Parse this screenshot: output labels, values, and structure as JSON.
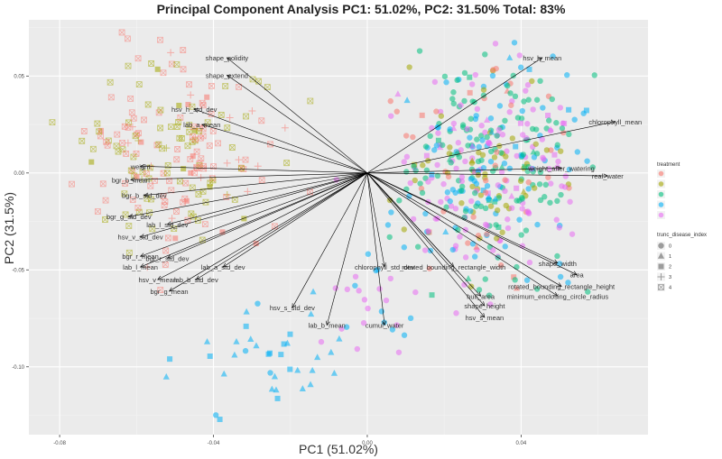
{
  "chart_data": {
    "type": "scatter",
    "title": "Principal Component Analysis PC1: 51.02%, PC2: 31.50% Total: 83%",
    "xlabel": "PC1 (51.02%)",
    "ylabel": "PC2 (31.5%)",
    "xlim": [
      -0.088,
      0.073
    ],
    "ylim": [
      -0.135,
      0.079
    ],
    "xticks": [
      -0.08,
      -0.04,
      0.0,
      0.04
    ],
    "xtick_labels": [
      "-0.08",
      "-0.04",
      "0.00",
      "0.04"
    ],
    "yticks": [
      0.05,
      0.0,
      -0.05,
      -0.1
    ],
    "ytick_labels": [
      "0.05",
      "0.00",
      "-0.05",
      "-0.10"
    ],
    "grid": true,
    "legend_placement": "right",
    "legend_color_title": "treatment",
    "legend_color_entries": [
      {
        "label": "",
        "color": "#F8766D"
      },
      {
        "label": "",
        "color": "#A3A500"
      },
      {
        "label": "",
        "color": "#00BF7D"
      },
      {
        "label": "",
        "color": "#00B0F6"
      },
      {
        "label": "",
        "color": "#E76BF3"
      }
    ],
    "legend_shape_title": "trunc_disease_index",
    "legend_shape_entries": [
      {
        "label": "0",
        "shape": "circle"
      },
      {
        "label": "1",
        "shape": "triangle"
      },
      {
        "label": "2",
        "shape": "square"
      },
      {
        "label": "3",
        "shape": "plus"
      },
      {
        "label": "4",
        "shape": "boxcross"
      }
    ],
    "loadings": [
      {
        "label": "shape_solidity",
        "x": -0.0365,
        "y": 0.0595
      },
      {
        "label": "shape_extend",
        "x": -0.0365,
        "y": 0.0505
      },
      {
        "label": "hsv_h_std_dev",
        "x": -0.045,
        "y": 0.033
      },
      {
        "label": "lab_a_mean",
        "x": -0.043,
        "y": 0.025
      },
      {
        "label": "weight",
        "x": -0.059,
        "y": 0.0035
      },
      {
        "label": "bgr_b_mean",
        "x": -0.0615,
        "y": -0.0035
      },
      {
        "label": "bgr_b_std_dev",
        "x": -0.058,
        "y": -0.0115
      },
      {
        "label": "bgr_g_std_dev",
        "x": -0.062,
        "y": -0.0225
      },
      {
        "label": "lab_l_std_dev",
        "x": -0.052,
        "y": -0.0265
      },
      {
        "label": "hsv_v_std_dev",
        "x": -0.059,
        "y": -0.033
      },
      {
        "label": "bgr_r_mean",
        "x": -0.059,
        "y": -0.043
      },
      {
        "label": "bgr_r_std_dev",
        "x": -0.052,
        "y": -0.044
      },
      {
        "label": "lab_l_mean",
        "x": -0.059,
        "y": -0.0485
      },
      {
        "label": "lab_a_std_dev",
        "x": -0.0375,
        "y": -0.0485
      },
      {
        "label": "hsv_v_mean",
        "x": -0.0545,
        "y": -0.055
      },
      {
        "label": "lab_b_std_dev",
        "x": -0.0445,
        "y": -0.055
      },
      {
        "label": "bgr_g_mean",
        "x": -0.0515,
        "y": -0.061
      },
      {
        "label": "hsv_s_std_dev",
        "x": -0.0195,
        "y": -0.0695
      },
      {
        "label": "lab_b_mean",
        "x": -0.0105,
        "y": -0.0785
      },
      {
        "label": "cumul_water",
        "x": 0.0045,
        "y": -0.0785
      },
      {
        "label": "chlorophyll_std_dev",
        "x": 0.0045,
        "y": -0.0485
      },
      {
        "label": "rotated_bounding_rectangle_width",
        "x": 0.0225,
        "y": -0.0485
      },
      {
        "label": "hull_area",
        "x": 0.0295,
        "y": -0.0635
      },
      {
        "label": "shape_height",
        "x": 0.0305,
        "y": -0.0685
      },
      {
        "label": "hsv_s_mean",
        "x": 0.0305,
        "y": -0.0745
      },
      {
        "label": "minimum_enclosing_circle_radius",
        "x": 0.0495,
        "y": -0.0635
      },
      {
        "label": "rotated_bounding_rectangle_height",
        "x": 0.0505,
        "y": -0.0585
      },
      {
        "label": "area",
        "x": 0.0545,
        "y": -0.0525
      },
      {
        "label": "shape_width",
        "x": 0.0495,
        "y": -0.0465
      },
      {
        "label": "real_water",
        "x": 0.0625,
        "y": -0.0015
      },
      {
        "label": "weight_after_watering",
        "x": 0.0505,
        "y": 0.0025
      },
      {
        "label": "chlorophyll_mean",
        "x": 0.0645,
        "y": 0.0265
      },
      {
        "label": "hsv_h_mean",
        "x": 0.0455,
        "y": 0.0595
      }
    ]
  }
}
